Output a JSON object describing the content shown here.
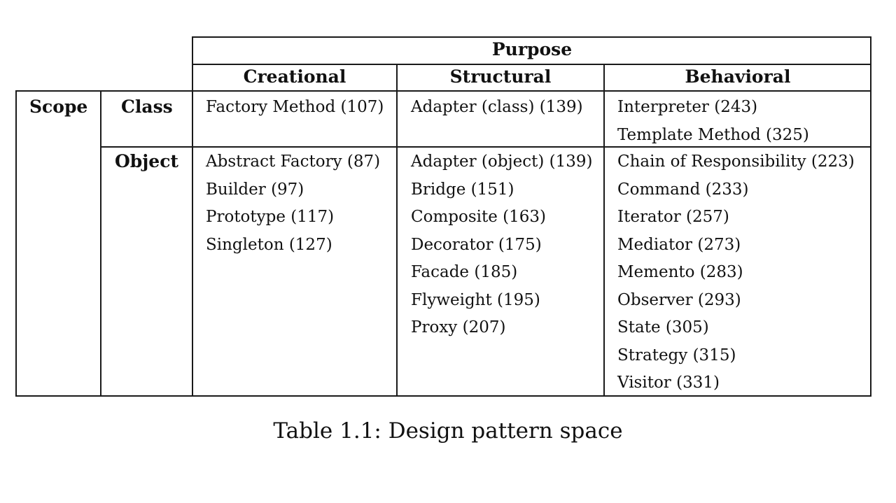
{
  "table": {
    "header_purpose": "Purpose",
    "header_scope": "Scope",
    "purpose_columns": [
      "Creational",
      "Structural",
      "Behavioral"
    ],
    "scope_rows": [
      "Class",
      "Object"
    ],
    "cells": {
      "class": {
        "creational": [
          "Factory Method (107)"
        ],
        "structural": [
          "Adapter (class) (139)"
        ],
        "behavioral": [
          "Interpreter (243)",
          "Template Method (325)"
        ]
      },
      "object": {
        "creational": [
          "Abstract Factory (87)",
          "Builder (97)",
          "Prototype (117)",
          "Singleton (127)"
        ],
        "structural": [
          "Adapter (object) (139)",
          "Bridge (151)",
          "Composite (163)",
          "Decorator (175)",
          "Facade (185)",
          "Flyweight (195)",
          "Proxy (207)"
        ],
        "behavioral": [
          "Chain of Responsibility (223)",
          "Command (233)",
          "Iterator (257)",
          "Mediator (273)",
          "Memento (283)",
          "Observer (293)",
          "State (305)",
          "Strategy (315)",
          "Visitor (331)"
        ]
      }
    }
  },
  "caption": "Table 1.1: Design pattern space"
}
